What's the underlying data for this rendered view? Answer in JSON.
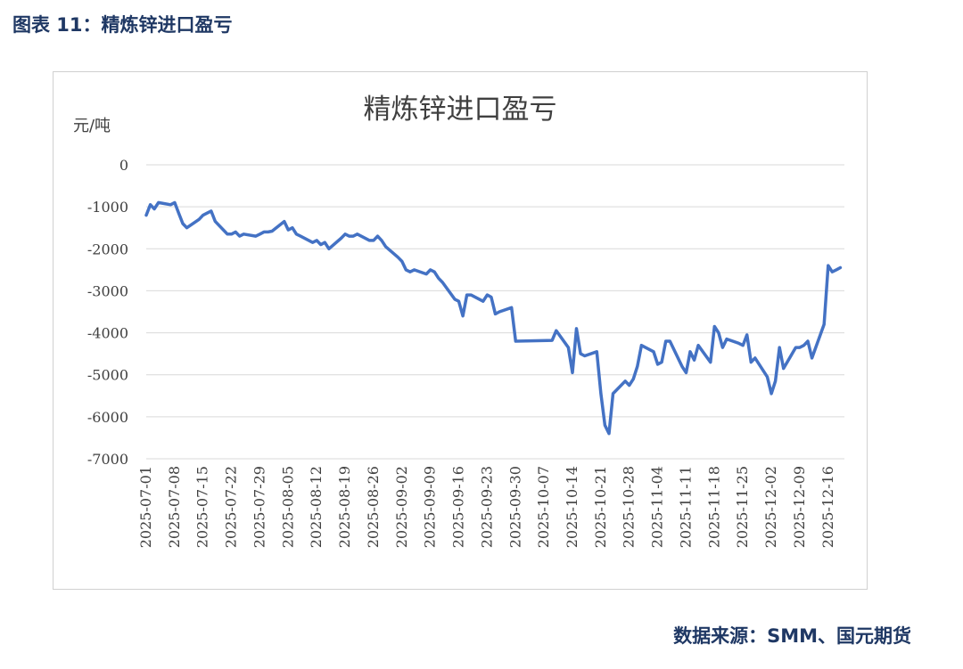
{
  "figure_caption": "图表 11：精炼锌进口盈亏",
  "source": "数据来源：SMM、国元期货",
  "chart_data": {
    "type": "line",
    "title": "精炼锌进口盈亏",
    "ylabel": "元/吨",
    "xlabel": "",
    "ylim": [
      -7000,
      0
    ],
    "yticks": [
      "0",
      "-1000",
      "-2000",
      "-3000",
      "-4000",
      "-5000",
      "-6000",
      "-7000"
    ],
    "xlim": [
      "2025-07-01",
      "2025-12-20"
    ],
    "xticks": [
      "2025-07-01",
      "2025-07-08",
      "2025-07-15",
      "2025-07-22",
      "2025-07-29",
      "2025-08-05",
      "2025-08-12",
      "2025-08-19",
      "2025-08-26",
      "2025-09-02",
      "2025-09-09",
      "2025-09-16",
      "2025-09-23",
      "2025-09-30",
      "2025-10-07",
      "2025-10-14",
      "2025-10-21",
      "2025-10-28",
      "2025-11-04",
      "2025-11-11",
      "2025-11-18",
      "2025-11-25",
      "2025-12-02",
      "2025-12-09",
      "2025-12-16"
    ],
    "grid": true,
    "line_color": "#4472c4",
    "series": [
      {
        "points": [
          [
            "2025-07-01",
            -1200
          ],
          [
            "2025-07-02",
            -950
          ],
          [
            "2025-07-03",
            -1050
          ],
          [
            "2025-07-04",
            -900
          ],
          [
            "2025-07-07",
            -950
          ],
          [
            "2025-07-08",
            -900
          ],
          [
            "2025-07-09",
            -1150
          ],
          [
            "2025-07-10",
            -1400
          ],
          [
            "2025-07-11",
            -1500
          ],
          [
            "2025-07-14",
            -1300
          ],
          [
            "2025-07-15",
            -1200
          ],
          [
            "2025-07-16",
            -1150
          ],
          [
            "2025-07-17",
            -1100
          ],
          [
            "2025-07-18",
            -1350
          ],
          [
            "2025-07-21",
            -1650
          ],
          [
            "2025-07-22",
            -1650
          ],
          [
            "2025-07-23",
            -1600
          ],
          [
            "2025-07-24",
            -1700
          ],
          [
            "2025-07-25",
            -1650
          ],
          [
            "2025-07-28",
            -1700
          ],
          [
            "2025-07-29",
            -1650
          ],
          [
            "2025-07-30",
            -1600
          ],
          [
            "2025-07-31",
            -1600
          ],
          [
            "2025-08-01",
            -1580
          ],
          [
            "2025-08-04",
            -1350
          ],
          [
            "2025-08-05",
            -1550
          ],
          [
            "2025-08-06",
            -1500
          ],
          [
            "2025-08-07",
            -1650
          ],
          [
            "2025-08-08",
            -1700
          ],
          [
            "2025-08-11",
            -1850
          ],
          [
            "2025-08-12",
            -1800
          ],
          [
            "2025-08-13",
            -1900
          ],
          [
            "2025-08-14",
            -1850
          ],
          [
            "2025-08-15",
            -2000
          ],
          [
            "2025-08-18",
            -1750
          ],
          [
            "2025-08-19",
            -1650
          ],
          [
            "2025-08-20",
            -1700
          ],
          [
            "2025-08-21",
            -1700
          ],
          [
            "2025-08-22",
            -1650
          ],
          [
            "2025-08-25",
            -1800
          ],
          [
            "2025-08-26",
            -1800
          ],
          [
            "2025-08-27",
            -1700
          ],
          [
            "2025-08-28",
            -1800
          ],
          [
            "2025-08-29",
            -1950
          ],
          [
            "2025-09-01",
            -2200
          ],
          [
            "2025-09-02",
            -2300
          ],
          [
            "2025-09-03",
            -2500
          ],
          [
            "2025-09-04",
            -2550
          ],
          [
            "2025-09-05",
            -2500
          ],
          [
            "2025-09-08",
            -2600
          ],
          [
            "2025-09-09",
            -2500
          ],
          [
            "2025-09-10",
            -2550
          ],
          [
            "2025-09-11",
            -2700
          ],
          [
            "2025-09-12",
            -2800
          ],
          [
            "2025-09-15",
            -3200
          ],
          [
            "2025-09-16",
            -3250
          ],
          [
            "2025-09-17",
            -3600
          ],
          [
            "2025-09-18",
            -3100
          ],
          [
            "2025-09-19",
            -3100
          ],
          [
            "2025-09-22",
            -3250
          ],
          [
            "2025-09-23",
            -3100
          ],
          [
            "2025-09-24",
            -3150
          ],
          [
            "2025-09-25",
            -3550
          ],
          [
            "2025-09-26",
            -3500
          ],
          [
            "2025-09-29",
            -3400
          ],
          [
            "2025-09-30",
            -4200
          ],
          [
            "2025-10-09",
            -4180
          ],
          [
            "2025-10-10",
            -3950
          ],
          [
            "2025-10-13",
            -4350
          ],
          [
            "2025-10-14",
            -4950
          ],
          [
            "2025-10-15",
            -3900
          ],
          [
            "2025-10-16",
            -4500
          ],
          [
            "2025-10-17",
            -4550
          ],
          [
            "2025-10-20",
            -4450
          ],
          [
            "2025-10-21",
            -5450
          ],
          [
            "2025-10-22",
            -6200
          ],
          [
            "2025-10-23",
            -6400
          ],
          [
            "2025-10-24",
            -5450
          ],
          [
            "2025-10-27",
            -5150
          ],
          [
            "2025-10-28",
            -5250
          ],
          [
            "2025-10-29",
            -5100
          ],
          [
            "2025-10-30",
            -4800
          ],
          [
            "2025-10-31",
            -4300
          ],
          [
            "2025-11-03",
            -4450
          ],
          [
            "2025-11-04",
            -4750
          ],
          [
            "2025-11-05",
            -4700
          ],
          [
            "2025-11-06",
            -4200
          ],
          [
            "2025-11-07",
            -4200
          ],
          [
            "2025-11-10",
            -4800
          ],
          [
            "2025-11-11",
            -4950
          ],
          [
            "2025-11-12",
            -4450
          ],
          [
            "2025-11-13",
            -4650
          ],
          [
            "2025-11-14",
            -4300
          ],
          [
            "2025-11-17",
            -4700
          ],
          [
            "2025-11-18",
            -3850
          ],
          [
            "2025-11-19",
            -4000
          ],
          [
            "2025-11-20",
            -4350
          ],
          [
            "2025-11-21",
            -4150
          ],
          [
            "2025-11-24",
            -4250
          ],
          [
            "2025-11-25",
            -4300
          ],
          [
            "2025-11-26",
            -4050
          ],
          [
            "2025-11-27",
            -4700
          ],
          [
            "2025-11-28",
            -4600
          ],
          [
            "2025-12-01",
            -5050
          ],
          [
            "2025-12-02",
            -5450
          ],
          [
            "2025-12-03",
            -5150
          ],
          [
            "2025-12-04",
            -4350
          ],
          [
            "2025-12-05",
            -4850
          ],
          [
            "2025-12-08",
            -4350
          ],
          [
            "2025-12-09",
            -4350
          ],
          [
            "2025-12-10",
            -4300
          ],
          [
            "2025-12-11",
            -4200
          ],
          [
            "2025-12-12",
            -4600
          ],
          [
            "2025-12-15",
            -3800
          ],
          [
            "2025-12-16",
            -2400
          ],
          [
            "2025-12-17",
            -2550
          ],
          [
            "2025-12-18",
            -2500
          ],
          [
            "2025-12-19",
            -2450
          ]
        ]
      }
    ]
  }
}
